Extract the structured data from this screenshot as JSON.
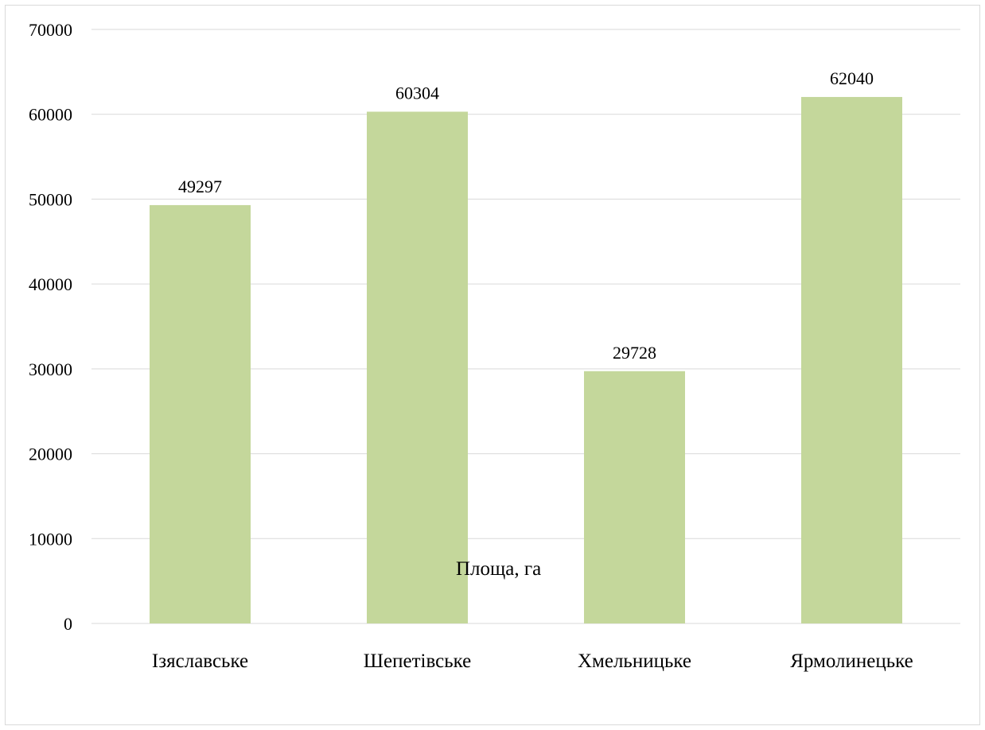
{
  "chart_data": {
    "type": "bar",
    "categories": [
      "Ізяславське",
      "Шепетівське",
      "Хмельницьке",
      "Ярмолинецьке"
    ],
    "series": [
      {
        "name": "Площа, га",
        "values": [
          49297,
          60304,
          29728,
          62040
        ],
        "color": "#c4d79b"
      }
    ],
    "data_labels": [
      "49297",
      "60304",
      "29728",
      "62040"
    ],
    "title": "",
    "xlabel": "",
    "ylabel": "",
    "ylim": [
      0,
      70000
    ],
    "yticks": [
      "0",
      "10000",
      "20000",
      "30000",
      "40000",
      "50000",
      "60000",
      "70000"
    ],
    "grid": true,
    "gridline_color": "#d9d9d9",
    "legend": {
      "placement": "bottom",
      "label": "Площа, га"
    }
  }
}
